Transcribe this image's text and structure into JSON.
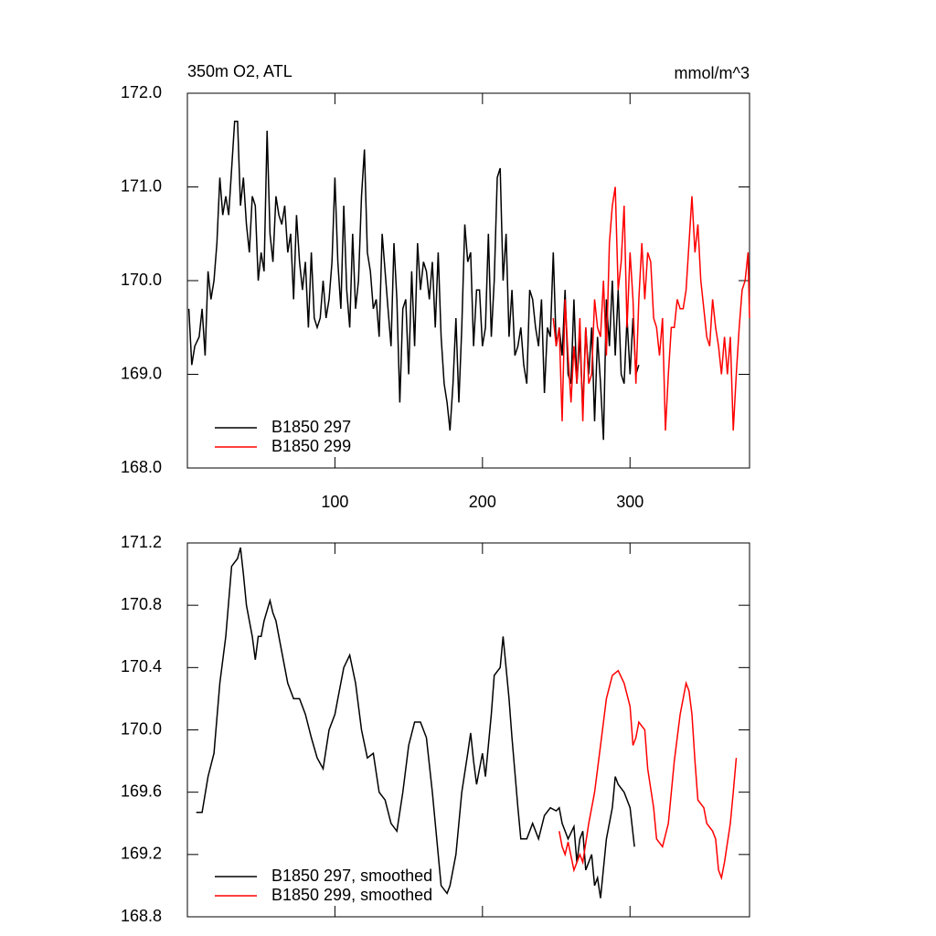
{
  "chart_data": [
    {
      "type": "line",
      "title": "350m O2, ATL",
      "units": "mmol/m^3",
      "xlim": [
        0,
        381
      ],
      "xticks": [
        100,
        200,
        300
      ],
      "ylim": [
        168,
        172
      ],
      "yticks": [
        {
          "value": 168,
          "label": "168.0"
        },
        {
          "value": 169,
          "label": "169.0"
        },
        {
          "value": 170,
          "label": "170.0"
        },
        {
          "value": 171,
          "label": "171.0"
        },
        {
          "value": 172,
          "label": "172.0"
        }
      ],
      "legend": "lower left",
      "series": [
        {
          "name": "B1850 297",
          "color": "#000000",
          "x": [
            1,
            3,
            5,
            8,
            10,
            12,
            14,
            16,
            18,
            20,
            22,
            24,
            26,
            28,
            32,
            34,
            36,
            38,
            40,
            42,
            44,
            46,
            48,
            50,
            52,
            54,
            56,
            58,
            60,
            62,
            64,
            66,
            68,
            70,
            72,
            74,
            76,
            78,
            80,
            82,
            84,
            86,
            88,
            90,
            92,
            94,
            96,
            98,
            100,
            102,
            104,
            106,
            108,
            110,
            112,
            114,
            116,
            118,
            120,
            122,
            124,
            126,
            128,
            130,
            132,
            134,
            136,
            138,
            140,
            142,
            144,
            146,
            148,
            150,
            152,
            154,
            156,
            158,
            160,
            162,
            164,
            166,
            168,
            170,
            172,
            174,
            176,
            178,
            180,
            182,
            184,
            186,
            188,
            190,
            192,
            194,
            196,
            198,
            200,
            202,
            204,
            206,
            208,
            210,
            212,
            214,
            216,
            218,
            220,
            222,
            224,
            226,
            228,
            230,
            232,
            234,
            236,
            238,
            240,
            242,
            244,
            246,
            248,
            250,
            252,
            254,
            256,
            258,
            260,
            262,
            264,
            266,
            268,
            270,
            272,
            274,
            276,
            278,
            280,
            282,
            284,
            286,
            288,
            290,
            292,
            294,
            296,
            298,
            300,
            302,
            304,
            306
          ],
          "values": [
            169.7,
            169.1,
            169.3,
            169.4,
            169.7,
            169.2,
            170.1,
            169.8,
            170.0,
            170.4,
            171.1,
            170.7,
            170.9,
            170.7,
            171.7,
            171.7,
            170.8,
            171.1,
            170.6,
            170.3,
            170.9,
            170.8,
            170.0,
            170.3,
            170.1,
            171.6,
            170.5,
            170.2,
            170.9,
            170.7,
            170.6,
            170.8,
            170.3,
            170.5,
            169.8,
            170.7,
            170.2,
            169.9,
            170.2,
            169.5,
            170.3,
            169.6,
            169.5,
            169.6,
            170.0,
            169.6,
            169.8,
            170.2,
            171.1,
            170.2,
            169.7,
            170.8,
            169.9,
            169.5,
            170.5,
            169.7,
            170.0,
            170.9,
            171.4,
            170.3,
            170.1,
            169.7,
            169.8,
            169.4,
            170.5,
            170.1,
            169.7,
            169.3,
            170.4,
            169.8,
            168.7,
            169.7,
            169.8,
            169.0,
            170.1,
            169.3,
            170.4,
            169.9,
            170.2,
            170.1,
            169.8,
            170.2,
            169.5,
            170.3,
            169.4,
            168.9,
            168.7,
            168.4,
            168.9,
            169.6,
            168.7,
            169.5,
            170.6,
            170.2,
            170.3,
            169.3,
            169.9,
            169.9,
            169.3,
            169.5,
            170.5,
            169.4,
            170.0,
            171.1,
            171.2,
            170.0,
            170.5,
            169.4,
            169.9,
            169.2,
            169.3,
            169.5,
            169.1,
            168.9,
            169.9,
            169.8,
            169.5,
            169.3,
            169.8,
            168.8,
            169.5,
            169.4,
            170.3,
            169.3,
            169.5,
            169.2,
            169.9,
            169.0,
            168.9,
            169.8,
            168.9,
            169.4,
            168.6,
            169.5,
            169.0,
            169.5,
            168.5,
            169.4,
            168.9,
            168.3,
            169.8,
            169.3,
            170.0,
            169.2,
            169.9,
            169.0,
            168.9,
            169.6,
            169.0,
            169.6,
            169.0,
            169.1
          ]
        },
        {
          "name": "B1850 299",
          "color": "#ff0000",
          "x": [
            248,
            250,
            252,
            254,
            256,
            258,
            260,
            262,
            264,
            266,
            268,
            270,
            272,
            274,
            276,
            278,
            280,
            282,
            284,
            286,
            288,
            290,
            292,
            294,
            296,
            298,
            300,
            302,
            304,
            306,
            308,
            310,
            312,
            314,
            316,
            318,
            320,
            322,
            324,
            326,
            328,
            330,
            332,
            334,
            336,
            338,
            340,
            342,
            344,
            346,
            348,
            350,
            352,
            354,
            356,
            358,
            360,
            362,
            364,
            366,
            368,
            370,
            372,
            374,
            376,
            378,
            380,
            381
          ],
          "values": [
            169.6,
            169.3,
            169.5,
            168.5,
            169.8,
            169.2,
            168.7,
            169.3,
            168.9,
            169.6,
            168.5,
            169.5,
            168.9,
            169.0,
            169.8,
            169.5,
            169.4,
            170.0,
            169.2,
            170.4,
            170.8,
            171.0,
            169.9,
            170.2,
            170.8,
            169.5,
            170.3,
            169.8,
            168.9,
            169.8,
            170.4,
            169.8,
            170.3,
            170.2,
            169.6,
            169.5,
            169.2,
            169.6,
            168.4,
            169.0,
            169.5,
            169.5,
            169.8,
            169.7,
            169.7,
            169.9,
            170.4,
            170.9,
            170.3,
            170.6,
            170.0,
            169.7,
            169.4,
            169.3,
            169.8,
            169.5,
            169.3,
            169.0,
            169.4,
            169.0,
            169.4,
            168.4,
            169.0,
            169.5,
            169.9,
            170.0,
            170.3,
            169.6
          ]
        }
      ]
    },
    {
      "type": "line",
      "xlim": [
        0,
        381
      ],
      "ylim": [
        168.8,
        171.2
      ],
      "yticks": [
        168.8,
        169.2,
        169.6,
        {
          "value": 170,
          "label": "170.0"
        },
        170.4,
        170.8,
        171.2
      ],
      "legend": "lower left",
      "series": [
        {
          "name": "B1850 297, smoothed",
          "color": "#000000",
          "x": [
            6,
            10,
            14,
            18,
            22,
            26,
            30,
            34,
            36,
            38,
            40,
            44,
            46,
            48,
            50,
            52,
            56,
            58,
            60,
            64,
            68,
            72,
            76,
            80,
            84,
            88,
            92,
            96,
            100,
            102,
            106,
            110,
            114,
            118,
            122,
            126,
            130,
            134,
            138,
            142,
            146,
            150,
            154,
            158,
            162,
            166,
            170,
            172,
            176,
            178,
            182,
            186,
            190,
            192,
            194,
            196,
            200,
            202,
            206,
            208,
            212,
            214,
            218,
            220,
            224,
            226,
            230,
            234,
            238,
            242,
            246,
            250,
            252,
            254,
            258,
            262,
            264,
            266,
            268,
            270,
            274,
            276,
            278,
            280,
            284,
            288,
            290,
            292,
            296,
            300,
            303
          ],
          "values": [
            169.47,
            169.47,
            169.7,
            169.85,
            170.3,
            170.6,
            171.05,
            171.1,
            171.17,
            171.0,
            170.8,
            170.6,
            170.45,
            170.6,
            170.6,
            170.7,
            170.83,
            170.75,
            170.7,
            170.5,
            170.3,
            170.2,
            170.2,
            170.1,
            169.95,
            169.82,
            169.75,
            170.0,
            170.1,
            170.2,
            170.4,
            170.48,
            170.3,
            170.0,
            169.82,
            169.85,
            169.6,
            169.55,
            169.4,
            169.35,
            169.6,
            169.9,
            170.05,
            170.05,
            169.95,
            169.6,
            169.2,
            169.0,
            168.95,
            169.0,
            169.2,
            169.6,
            169.85,
            169.98,
            169.8,
            169.65,
            169.85,
            169.7,
            170.1,
            170.35,
            170.4,
            170.6,
            170.2,
            169.95,
            169.5,
            169.3,
            169.3,
            169.4,
            169.3,
            169.45,
            169.5,
            169.48,
            169.5,
            169.4,
            169.3,
            169.38,
            169.15,
            169.3,
            169.35,
            169.1,
            169.2,
            169.0,
            169.05,
            168.92,
            169.3,
            169.5,
            169.7,
            169.65,
            169.6,
            169.5,
            169.25
          ]
        },
        {
          "name": "B1850 299, smoothed",
          "color": "#ff0000",
          "x": [
            252,
            254,
            256,
            258,
            262,
            266,
            268,
            272,
            276,
            280,
            284,
            288,
            292,
            296,
            300,
            302,
            304,
            306,
            310,
            312,
            316,
            318,
            322,
            326,
            330,
            334,
            338,
            340,
            342,
            344,
            346,
            350,
            352,
            356,
            358,
            360,
            362,
            364,
            368,
            370,
            372
          ],
          "values": [
            169.35,
            169.25,
            169.2,
            169.28,
            169.1,
            169.2,
            169.15,
            169.4,
            169.6,
            169.9,
            170.2,
            170.35,
            170.38,
            170.3,
            170.15,
            169.9,
            169.95,
            170.05,
            170.0,
            169.75,
            169.5,
            169.3,
            169.25,
            169.4,
            169.8,
            170.1,
            170.3,
            170.25,
            170.1,
            169.8,
            169.55,
            169.5,
            169.4,
            169.35,
            169.3,
            169.1,
            169.05,
            169.15,
            169.4,
            169.6,
            169.82
          ]
        }
      ]
    }
  ]
}
